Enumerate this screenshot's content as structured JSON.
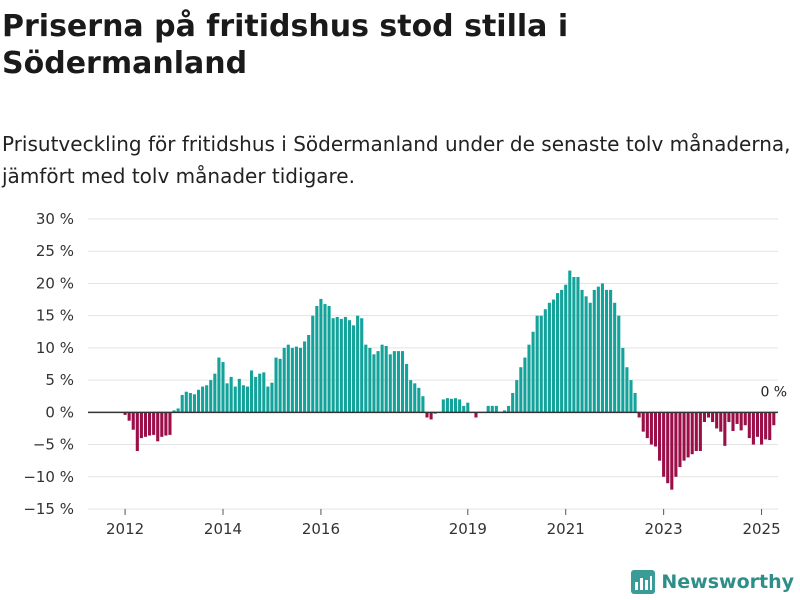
{
  "header": {
    "title": "Priserna på fritidshus stod stilla i Södermanland",
    "subtitle": "Prisutveckling för fritidshus i Södermanland under de senaste tolv månaderna, jämfört med tolv månader tidigare."
  },
  "brand": {
    "name": "Newsworthy",
    "icon": "newsworthy-logo-icon"
  },
  "colors": {
    "positive": "#13a39a",
    "negative": "#9b0f48",
    "grid": "#e3e3e3",
    "zero": "#333333"
  },
  "chart_data": {
    "type": "bar",
    "title": "Priserna på fritidshus stod stilla i Södermanland",
    "ylabel": "",
    "xlabel": "",
    "ylim": [
      -15,
      30
    ],
    "y_ticks": [
      -15,
      -10,
      -5,
      0,
      5,
      10,
      15,
      20,
      25,
      30
    ],
    "y_tick_labels": [
      "−15 %",
      "−10 %",
      "−5 %",
      "0 %",
      "5 %",
      "10 %",
      "15 %",
      "20 %",
      "25 %",
      "30 %"
    ],
    "x_tick_labels": [
      "2012",
      "2014",
      "2016",
      "2019",
      "2021",
      "2023",
      "2025"
    ],
    "x_tick_index": [
      1,
      25,
      49,
      85,
      109,
      133,
      157
    ],
    "annotation": "0 %",
    "series": [
      {
        "name": "Prisutveckling",
        "start": "2011-12",
        "values": [
          0,
          -0.4,
          -1.3,
          -2.7,
          -6,
          -4,
          -3.8,
          -3.6,
          -3.5,
          -4.5,
          -3.8,
          -3.6,
          -3.5,
          0.3,
          0.6,
          2.7,
          3.2,
          3,
          2.8,
          3.5,
          4,
          4.2,
          5,
          6,
          8.5,
          7.8,
          4.5,
          5.5,
          4,
          5.2,
          4.2,
          4,
          6.5,
          5.5,
          6,
          6.2,
          4,
          4.6,
          8.5,
          8.3,
          10,
          10.5,
          10,
          10.2,
          10,
          11,
          12,
          15,
          16.5,
          17.6,
          16.8,
          16.5,
          14.6,
          14.8,
          14.5,
          14.8,
          14.3,
          13.5,
          15,
          14.6,
          10.5,
          10,
          9,
          9.5,
          10.5,
          10.3,
          9,
          9.5,
          9.5,
          9.5,
          7.5,
          5,
          4.5,
          3.8,
          2.5,
          -0.8,
          -1.1,
          -0.2,
          0,
          2,
          2.2,
          2.1,
          2.2,
          2,
          1,
          1.5,
          0,
          -0.8,
          0,
          0,
          1,
          1,
          1,
          0,
          0.3,
          1,
          3,
          5,
          7,
          8.5,
          10.5,
          12.5,
          15,
          15,
          16,
          17,
          17.5,
          18.5,
          19,
          19.8,
          22,
          21,
          21,
          19,
          18,
          17,
          19,
          19.5,
          20,
          19,
          19,
          17,
          15,
          10,
          7,
          5,
          3,
          -0.8,
          -3,
          -4,
          -5,
          -5.3,
          -7.5,
          -10,
          -11,
          -12,
          -10,
          -8.5,
          -7.5,
          -7,
          -6.5,
          -6,
          -6,
          -1.5,
          -0.8,
          -1.5,
          -2.5,
          -3,
          -5.2,
          -1.5,
          -2.9,
          -1.8,
          -2.8,
          -2,
          -4,
          -5,
          -3.8,
          -5,
          -4.2,
          -4.3,
          -2
        ]
      }
    ]
  }
}
